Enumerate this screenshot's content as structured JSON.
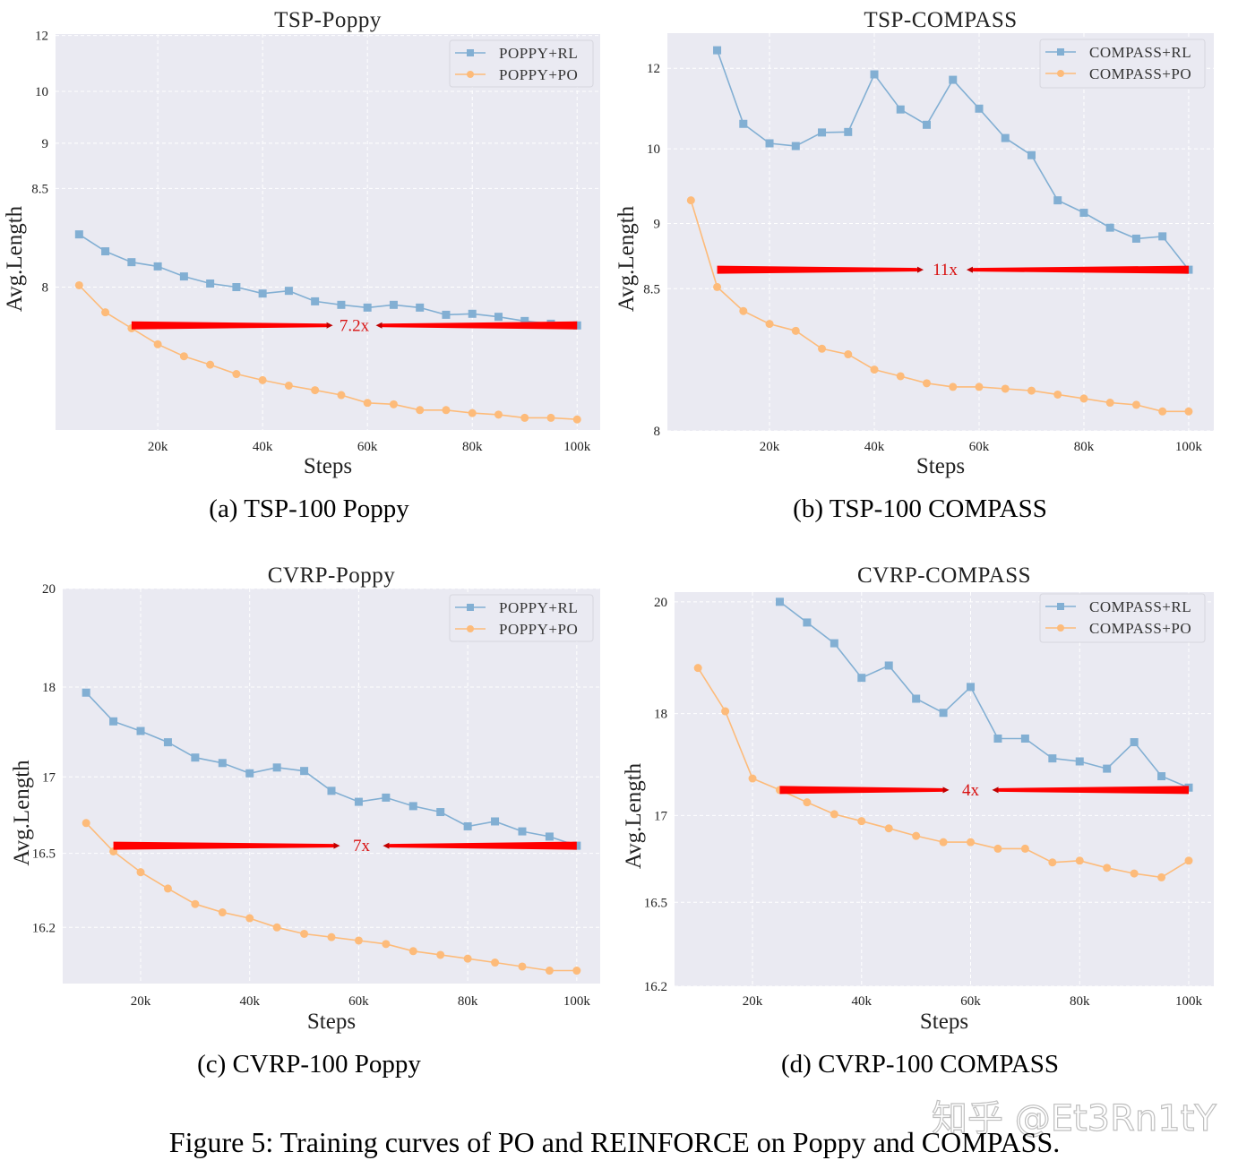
{
  "colors": {
    "rl": "#82afd3",
    "po": "#fdbb7a",
    "background": "#eaeaf2",
    "grid": "#ffffff",
    "arrow": "#ff0000",
    "annotation_text": "#d81010"
  },
  "figure_caption": "Figure 5: Training curves of PO and REINFORCE on Poppy and COMPASS.",
  "watermark": "知乎 @Et3Rn1tY",
  "chart_data": [
    {
      "type": "line",
      "title": "TSP-Poppy",
      "caption": "(a) TSP-100 Poppy",
      "xlabel": "Steps",
      "ylabel": "Avg.Length",
      "yscale": "log",
      "grid": true,
      "legend_position": "top-right",
      "xlim": [
        500,
        104400
      ],
      "ylim": [
        7.807,
        12.07
      ],
      "xticks": [
        20000,
        40000,
        60000,
        80000,
        100000
      ],
      "xtick_labels": [
        "20k",
        "40k",
        "60k",
        "80k",
        "100k"
      ],
      "yticks": [
        8,
        8.5,
        9,
        10,
        12
      ],
      "ytick_labels": [
        "8",
        "8.5",
        "9",
        "10",
        "12"
      ],
      "series": [
        {
          "name": "POPPY+RL",
          "marker": "square",
          "color": "#82afd3",
          "x": [
            5000,
            10000,
            15000,
            20000,
            25000,
            30000,
            35000,
            40000,
            45000,
            50000,
            55000,
            60000,
            65000,
            70000,
            75000,
            80000,
            85000,
            90000,
            95000,
            100000
          ],
          "y": [
            8.198,
            8.121,
            8.079,
            8.064,
            8.031,
            8.01,
            8.0,
            7.983,
            7.99,
            7.964,
            7.956,
            7.95,
            7.956,
            7.95,
            7.935,
            7.937,
            7.931,
            7.923,
            7.918,
            7.915
          ]
        },
        {
          "name": "POPPY+PO",
          "marker": "circle",
          "color": "#fdbb7a",
          "x": [
            5000,
            10000,
            15000,
            20000,
            25000,
            30000,
            35000,
            40000,
            45000,
            50000,
            55000,
            60000,
            65000,
            70000,
            75000,
            80000,
            85000,
            90000,
            95000,
            100000
          ],
          "y": [
            8.005,
            7.94,
            7.91,
            7.885,
            7.869,
            7.859,
            7.849,
            7.843,
            7.838,
            7.834,
            7.83,
            7.824,
            7.823,
            7.819,
            7.819,
            7.817,
            7.816,
            7.814,
            7.814,
            7.813
          ]
        }
      ],
      "annotation": {
        "text": "7.2x",
        "y": 7.915,
        "x_from": 15000,
        "x_to": 100000,
        "x_text": 57500
      }
    },
    {
      "type": "line",
      "title": "TSP-COMPASS",
      "caption": "(b) TSP-100 COMPASS",
      "xlabel": "Steps",
      "ylabel": "Avg.Length",
      "yscale": "log",
      "grid": true,
      "legend_position": "top-right",
      "xlim": [
        500,
        104800
      ],
      "ylim": [
        8.0,
        13.36
      ],
      "xticks": [
        20000,
        40000,
        60000,
        80000,
        100000
      ],
      "xtick_labels": [
        "20k",
        "40k",
        "60k",
        "80k",
        "100k"
      ],
      "yticks": [
        8,
        8.5,
        9,
        10,
        12
      ],
      "ytick_labels": [
        "8",
        "8.5",
        "9",
        "10",
        "12"
      ],
      "series": [
        {
          "name": "COMPASS+RL",
          "marker": "square",
          "color": "#82afd3",
          "x": [
            10000,
            15000,
            20000,
            25000,
            30000,
            35000,
            40000,
            45000,
            50000,
            55000,
            60000,
            65000,
            70000,
            75000,
            80000,
            85000,
            90000,
            95000,
            100000
          ],
          "y": [
            12.65,
            10.49,
            10.1,
            10.05,
            10.31,
            10.32,
            11.8,
            10.82,
            10.47,
            11.63,
            10.84,
            10.2,
            9.89,
            9.25,
            9.11,
            8.96,
            8.86,
            8.88,
            8.62
          ]
        },
        {
          "name": "COMPASS+PO",
          "marker": "circle",
          "color": "#fdbb7a",
          "x": [
            5000,
            10000,
            15000,
            20000,
            25000,
            30000,
            35000,
            40000,
            45000,
            50000,
            55000,
            60000,
            65000,
            70000,
            75000,
            80000,
            85000,
            90000,
            95000,
            100000
          ],
          "y": [
            9.25,
            8.51,
            8.38,
            8.32,
            8.29,
            8.22,
            8.2,
            8.15,
            8.13,
            8.11,
            8.1,
            8.1,
            8.095,
            8.09,
            8.08,
            8.07,
            8.06,
            8.055,
            8.04,
            8.04
          ]
        }
      ],
      "annotation": {
        "text": "11x",
        "y": 8.62,
        "x_from": 10000,
        "x_to": 100000,
        "x_text": 53500
      }
    },
    {
      "type": "line",
      "title": "CVRP-Poppy",
      "caption": "(c) CVRP-100 Poppy",
      "xlabel": "Steps",
      "ylabel": "Avg.Length",
      "yscale": "log",
      "grid": true,
      "legend_position": "top-right",
      "xlim": [
        5700,
        104300
      ],
      "ylim": [
        16.05,
        20.0
      ],
      "xticks": [
        20000,
        40000,
        60000,
        80000,
        100000
      ],
      "xtick_labels": [
        "20k",
        "40k",
        "60k",
        "80k",
        "100k"
      ],
      "yticks": [
        16.2,
        16.5,
        17,
        18,
        20
      ],
      "ytick_labels": [
        "16.2",
        "16.5",
        "17",
        "18",
        "20"
      ],
      "series": [
        {
          "name": "POPPY+RL",
          "marker": "square",
          "color": "#82afd3",
          "x": [
            10000,
            15000,
            20000,
            25000,
            30000,
            35000,
            40000,
            45000,
            50000,
            55000,
            60000,
            65000,
            70000,
            75000,
            80000,
            85000,
            90000,
            95000,
            100000
          ],
          "y": [
            17.92,
            17.55,
            17.44,
            17.32,
            17.17,
            17.12,
            17.03,
            17.08,
            17.05,
            16.89,
            16.81,
            16.84,
            16.78,
            16.74,
            16.65,
            16.68,
            16.62,
            16.59,
            16.54
          ]
        },
        {
          "name": "POPPY+PO",
          "marker": "circle",
          "color": "#fdbb7a",
          "x": [
            10000,
            15000,
            20000,
            25000,
            30000,
            35000,
            40000,
            45000,
            50000,
            55000,
            60000,
            65000,
            70000,
            75000,
            80000,
            85000,
            90000,
            95000,
            100000
          ],
          "y": [
            16.67,
            16.51,
            16.41,
            16.34,
            16.28,
            16.25,
            16.23,
            16.2,
            16.18,
            16.17,
            16.16,
            16.15,
            16.13,
            16.12,
            16.11,
            16.1,
            16.09,
            16.08,
            16.08
          ]
        }
      ],
      "annotation": {
        "text": "7x",
        "y": 16.54,
        "x_from": 15000,
        "x_to": 100000,
        "x_text": 60500
      }
    },
    {
      "type": "line",
      "title": "CVRP-COMPASS",
      "caption": "(d) CVRP-100 COMPASS",
      "xlabel": "Steps",
      "ylabel": "Avg.Length",
      "yscale": "log",
      "grid": true,
      "legend_position": "top-right",
      "xlim": [
        5700,
        104600
      ],
      "ylim": [
        16.2,
        20.24
      ],
      "xticks": [
        20000,
        40000,
        60000,
        80000,
        100000
      ],
      "xtick_labels": [
        "20k",
        "40k",
        "60k",
        "80k",
        "100k"
      ],
      "yticks": [
        16.2,
        16.5,
        17,
        18,
        20
      ],
      "ytick_labels": [
        "16.2",
        "16.5",
        "17",
        "18",
        "20"
      ],
      "series": [
        {
          "name": "COMPASS+RL",
          "marker": "square",
          "color": "#82afd3",
          "x": [
            25000,
            30000,
            35000,
            40000,
            45000,
            50000,
            55000,
            60000,
            65000,
            70000,
            75000,
            80000,
            85000,
            90000,
            95000,
            100000
          ],
          "y": [
            20.0,
            19.53,
            19.11,
            18.51,
            18.71,
            18.2,
            18.01,
            18.37,
            17.7,
            17.7,
            17.49,
            17.46,
            17.39,
            17.66,
            17.32,
            17.22
          ]
        },
        {
          "name": "COMPASS+PO",
          "marker": "circle",
          "color": "#fdbb7a",
          "x": [
            10000,
            15000,
            20000,
            25000,
            30000,
            35000,
            40000,
            45000,
            50000,
            55000,
            60000,
            65000,
            70000,
            75000,
            80000,
            85000,
            90000,
            95000,
            100000
          ],
          "y": [
            18.67,
            18.03,
            17.3,
            17.2,
            17.1,
            17.01,
            16.96,
            16.91,
            16.86,
            16.82,
            16.82,
            16.78,
            16.78,
            16.7,
            16.71,
            16.67,
            16.64,
            16.62,
            16.71
          ]
        }
      ],
      "annotation": {
        "text": "4x",
        "y": 17.2,
        "x_from": 25000,
        "x_to": 100000,
        "x_text": 60000
      }
    }
  ]
}
